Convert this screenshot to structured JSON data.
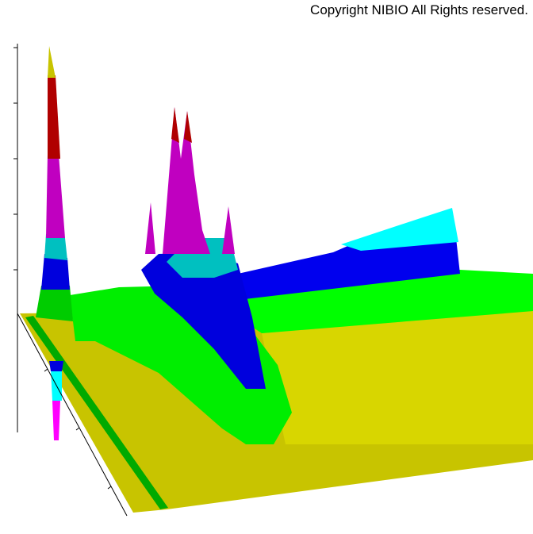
{
  "header": {
    "copyright": "Copyright NIBIO All Rights reserved."
  }
}
